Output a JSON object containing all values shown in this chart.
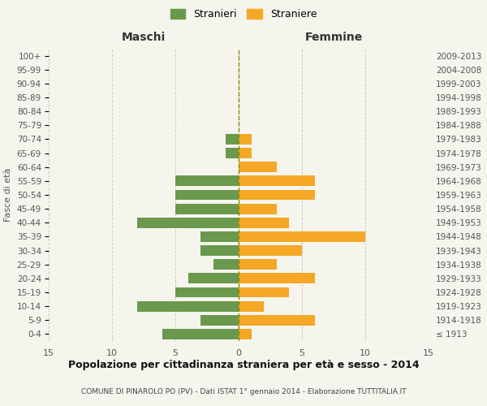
{
  "age_groups": [
    "100+",
    "95-99",
    "90-94",
    "85-89",
    "80-84",
    "75-79",
    "70-74",
    "65-69",
    "60-64",
    "55-59",
    "50-54",
    "45-49",
    "40-44",
    "35-39",
    "30-34",
    "25-29",
    "20-24",
    "15-19",
    "10-14",
    "5-9",
    "0-4"
  ],
  "birth_years": [
    "≤ 1913",
    "1914-1918",
    "1919-1923",
    "1924-1928",
    "1929-1933",
    "1934-1938",
    "1939-1943",
    "1944-1948",
    "1949-1953",
    "1954-1958",
    "1959-1963",
    "1964-1968",
    "1969-1973",
    "1974-1978",
    "1979-1983",
    "1984-1988",
    "1989-1993",
    "1994-1998",
    "1999-2003",
    "2004-2008",
    "2009-2013"
  ],
  "maschi": [
    0,
    0,
    0,
    0,
    0,
    0,
    1,
    1,
    0,
    5,
    5,
    5,
    8,
    3,
    3,
    2,
    4,
    5,
    8,
    3,
    6
  ],
  "femmine": [
    0,
    0,
    0,
    0,
    0,
    0,
    1,
    1,
    3,
    6,
    6,
    3,
    4,
    10,
    5,
    3,
    6,
    4,
    2,
    6,
    1
  ],
  "maschi_color": "#6a994e",
  "femmine_color": "#f4a825",
  "center_line_color": "#8a8a00",
  "bg_color": "#f5f5ee",
  "grid_color": "#ccccbb",
  "title": "Popolazione per cittadinanza straniera per età e sesso - 2014",
  "subtitle": "COMUNE DI PINAROLO PO (PV) - Dati ISTAT 1° gennaio 2014 - Elaborazione TUTTITALIA.IT",
  "label_maschi": "Maschi",
  "label_femmine": "Femmine",
  "ylabel_left": "Fasce di età",
  "legend_maschi": "Stranieri",
  "legend_femmine": "Straniere",
  "xlim": 15,
  "bar_height": 0.75
}
